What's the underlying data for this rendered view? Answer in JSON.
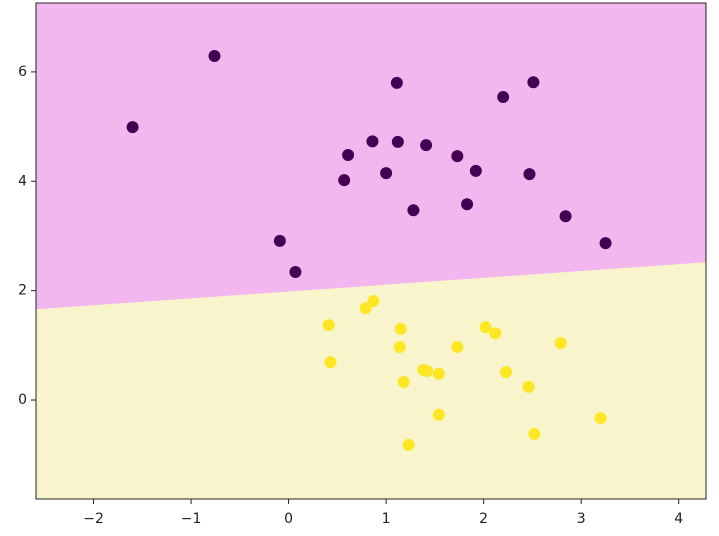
{
  "chart_data": {
    "type": "scatter",
    "xlim": [
      -2.59,
      4.28
    ],
    "ylim": [
      -1.81,
      7.26
    ],
    "xticks": [
      {
        "value": -2,
        "label": "−2"
      },
      {
        "value": -1,
        "label": "−1"
      },
      0,
      1,
      2,
      3,
      4
    ],
    "yticks": [
      0,
      2,
      4,
      6
    ],
    "regions": {
      "upper_color": "#f4b6ee",
      "lower_color": "#f8f5cd"
    },
    "boundary": {
      "x": [
        -2.59,
        4.28
      ],
      "y": [
        1.66,
        2.52
      ]
    },
    "series": [
      {
        "color": "#440154",
        "x": [
          -1.6,
          -0.76,
          1.11,
          2.2,
          2.51,
          0.61,
          0.86,
          1.12,
          1.41,
          1.73,
          0.57,
          1.0,
          1.92,
          2.47,
          1.28,
          1.83,
          2.84,
          3.25,
          -0.09,
          0.07
        ],
        "values": [
          4.99,
          6.29,
          5.8,
          5.54,
          5.81,
          4.48,
          4.73,
          4.72,
          4.66,
          4.46,
          4.02,
          4.15,
          4.19,
          4.13,
          3.47,
          3.58,
          3.36,
          2.87,
          2.91,
          2.34
        ]
      },
      {
        "color": "#fde725",
        "x": [
          0.41,
          0.43,
          0.79,
          0.87,
          1.15,
          1.14,
          1.18,
          1.38,
          1.42,
          1.54,
          1.54,
          1.23,
          1.73,
          2.02,
          2.12,
          2.23,
          2.46,
          2.52,
          2.79,
          3.2
        ],
        "values": [
          1.37,
          0.69,
          1.68,
          1.81,
          1.3,
          0.97,
          0.33,
          0.55,
          0.53,
          0.48,
          -0.27,
          -0.82,
          0.97,
          1.33,
          1.22,
          0.51,
          0.24,
          -0.62,
          1.04,
          -0.33
        ]
      }
    ]
  }
}
